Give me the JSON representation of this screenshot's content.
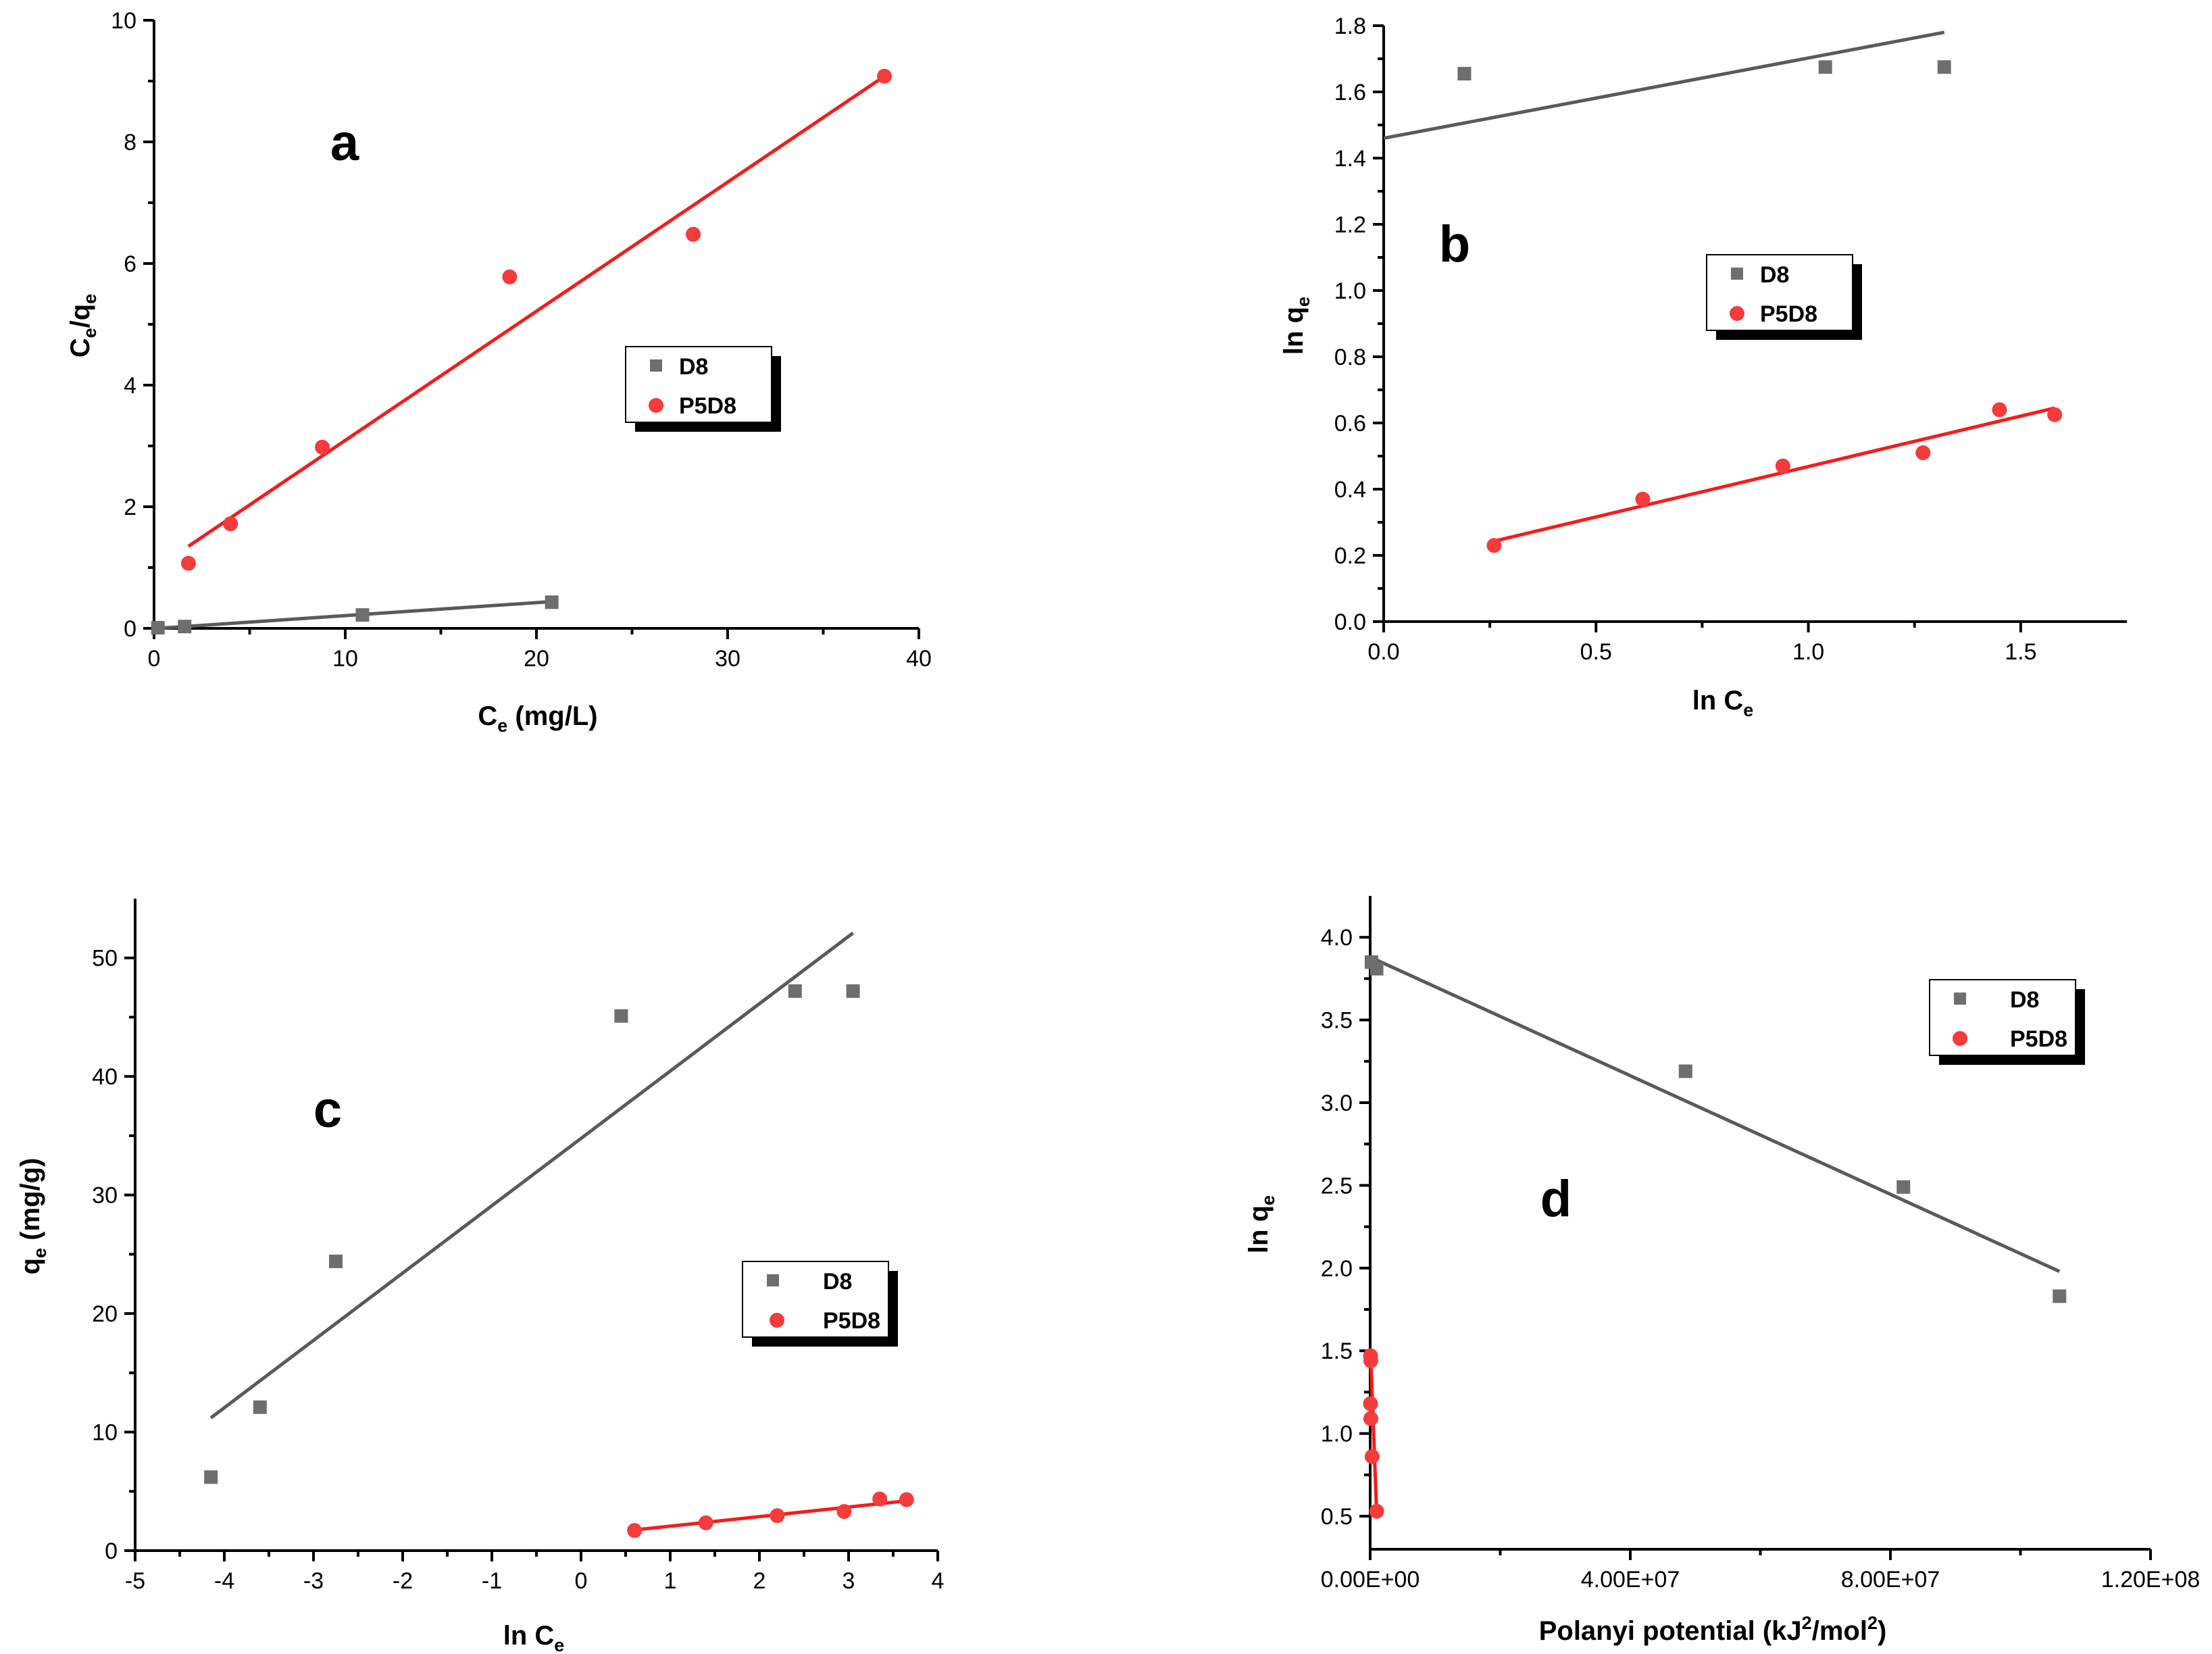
{
  "colors": {
    "d8": "#5a5a5a",
    "p5d8": "#f51c1c",
    "d8_marker": "#6e6e6e",
    "p5d8_marker": "#f53b3b"
  },
  "chart_data": [
    {
      "panel": "a",
      "type": "scatter",
      "xlabel": {
        "main": "C",
        "sub": "e",
        "rest": " (mg/L)"
      },
      "ylabel": {
        "p1": "C",
        "s1": "e",
        "p2": "/q",
        "s2": "e"
      },
      "xlim": [
        0,
        40
      ],
      "ylim": [
        0,
        10
      ],
      "xticks": [
        0,
        10,
        20,
        30,
        40
      ],
      "yticks": [
        0,
        2,
        4,
        6,
        8,
        10
      ],
      "xtick_labels": [
        "0",
        "10",
        "20",
        "30",
        "40"
      ],
      "ytick_labels": [
        "0",
        "2",
        "4",
        "6",
        "8",
        "10"
      ],
      "legend": {
        "position": "center-right",
        "entries": [
          "D8",
          "P5D8"
        ]
      },
      "series": [
        {
          "name": "D8",
          "marker": "square",
          "points": [
            [
              0.2,
              0.01
            ],
            [
              1.6,
              0.03
            ],
            [
              10.9,
              0.22
            ],
            [
              20.8,
              0.43
            ]
          ],
          "fit": [
            [
              0.2,
              0.0
            ],
            [
              20.8,
              0.44
            ]
          ]
        },
        {
          "name": "P5D8",
          "marker": "circle",
          "points": [
            [
              1.8,
              1.07
            ],
            [
              4.0,
              1.72
            ],
            [
              8.8,
              2.98
            ],
            [
              18.6,
              5.78
            ],
            [
              28.2,
              6.48
            ],
            [
              38.2,
              9.08
            ]
          ],
          "fit": [
            [
              1.8,
              1.35
            ],
            [
              38.2,
              9.08
            ]
          ]
        }
      ]
    },
    {
      "panel": "b",
      "type": "scatter",
      "xlabel": {
        "main": "ln C",
        "sub": "e",
        "rest": ""
      },
      "ylabel": {
        "p1": "ln q",
        "s1": "e",
        "p2": "",
        "s2": ""
      },
      "xlim": [
        0,
        1.75
      ],
      "ylim": [
        0,
        1.8
      ],
      "xticks": [
        0,
        0.5,
        1.0,
        1.5
      ],
      "yticks": [
        0,
        0.2,
        0.4,
        0.6,
        0.8,
        1.0,
        1.2,
        1.4,
        1.6,
        1.8
      ],
      "xtick_labels": [
        "0.0",
        "0.5",
        "1.0",
        "1.5"
      ],
      "ytick_labels": [
        "0.0",
        "0.2",
        "0.4",
        "0.6",
        "0.8",
        "1.0",
        "1.2",
        "1.4",
        "1.6",
        "1.8"
      ],
      "legend": {
        "position": "center-right",
        "entries": [
          "D8",
          "P5D8"
        ]
      },
      "series": [
        {
          "name": "D8",
          "marker": "square",
          "points": [
            [
              0.19,
              1.655
            ],
            [
              1.04,
              1.675
            ],
            [
              1.32,
              1.675
            ]
          ],
          "fit": [
            [
              0.0,
              1.46
            ],
            [
              1.32,
              1.78
            ]
          ]
        },
        {
          "name": "P5D8",
          "marker": "circle",
          "points": [
            [
              0.26,
              0.23
            ],
            [
              0.61,
              0.37
            ],
            [
              0.94,
              0.47
            ],
            [
              1.27,
              0.51
            ],
            [
              1.45,
              0.64
            ],
            [
              1.58,
              0.625
            ]
          ],
          "fit": [
            [
              0.25,
              0.24
            ],
            [
              1.58,
              0.645
            ]
          ]
        }
      ]
    },
    {
      "panel": "c",
      "type": "scatter",
      "xlabel": {
        "main": "ln C",
        "sub": "e",
        "rest": ""
      },
      "ylabel": {
        "p1": "q",
        "s1": "e",
        "p2": " (mg/g)",
        "s2": ""
      },
      "xlim": [
        -5,
        4
      ],
      "ylim": [
        0,
        55
      ],
      "xticks": [
        -5,
        -4,
        -3,
        -2,
        -1,
        0,
        1,
        2,
        3,
        4
      ],
      "yticks": [
        0,
        10,
        20,
        30,
        40,
        50
      ],
      "xtick_labels": [
        "-5",
        "-4",
        "-3",
        "-2",
        "-1",
        "0",
        "1",
        "2",
        "3",
        "4"
      ],
      "ytick_labels": [
        "0",
        "10",
        "20",
        "30",
        "40",
        "50"
      ],
      "legend": {
        "position": "center-right",
        "entries": [
          "D8",
          "P5D8"
        ]
      },
      "series": [
        {
          "name": "D8",
          "marker": "square",
          "points": [
            [
              -4.15,
              6.2
            ],
            [
              -3.6,
              12.1
            ],
            [
              -2.75,
              24.4
            ],
            [
              0.45,
              45.1
            ],
            [
              2.4,
              47.2
            ],
            [
              3.05,
              47.2
            ]
          ],
          "fit": [
            [
              -4.15,
              11.2
            ],
            [
              3.05,
              52.1
            ]
          ]
        },
        {
          "name": "P5D8",
          "marker": "circle",
          "points": [
            [
              0.6,
              1.7
            ],
            [
              1.4,
              2.35
            ],
            [
              2.2,
              2.95
            ],
            [
              2.95,
              3.3
            ],
            [
              3.35,
              4.35
            ],
            [
              3.65,
              4.3
            ]
          ],
          "fit": [
            [
              0.55,
              1.7
            ],
            [
              3.65,
              4.2
            ]
          ]
        }
      ]
    },
    {
      "panel": "d",
      "type": "scatter",
      "xlabel": {
        "main": "Polanyi potential (kJ",
        "sup1": "2",
        "mid": "/mol",
        "sup2": "2",
        "rest": ")"
      },
      "ylabel": {
        "p1": "ln q",
        "s1": "e",
        "p2": "",
        "s2": ""
      },
      "xlim": [
        0,
        120000000
      ],
      "ylim": [
        0.3,
        4.25
      ],
      "xticks": [
        0,
        40000000,
        80000000,
        120000000
      ],
      "yticks": [
        0.5,
        1.0,
        1.5,
        2.0,
        2.5,
        3.0,
        3.5,
        4.0
      ],
      "xtick_labels": [
        "0.00E+00",
        "4.00E+07",
        "8.00E+07",
        "1.20E+08"
      ],
      "ytick_labels": [
        "0.5",
        "1.0",
        "1.5",
        "2.0",
        "2.5",
        "3.0",
        "3.5",
        "4.0"
      ],
      "legend": {
        "position": "top-right",
        "entries": [
          "D8",
          "P5D8"
        ]
      },
      "series": [
        {
          "name": "D8",
          "marker": "square",
          "points": [
            [
              200000,
              3.85
            ],
            [
              1000000,
              3.81
            ],
            [
              48500000,
              3.19
            ],
            [
              82000000,
              2.49
            ],
            [
              106000000,
              1.83
            ]
          ],
          "fit": [
            [
              0,
              3.88
            ],
            [
              106000000,
              1.98
            ]
          ]
        },
        {
          "name": "P5D8",
          "marker": "circle",
          "points": [
            [
              50000,
              1.47
            ],
            [
              100000,
              1.44
            ],
            [
              50000,
              1.18
            ],
            [
              100000,
              1.09
            ],
            [
              300000,
              0.86
            ],
            [
              1000000,
              0.53
            ]
          ],
          "fit": [
            [
              100000,
              1.45
            ],
            [
              1000000,
              0.52
            ]
          ]
        }
      ]
    }
  ]
}
